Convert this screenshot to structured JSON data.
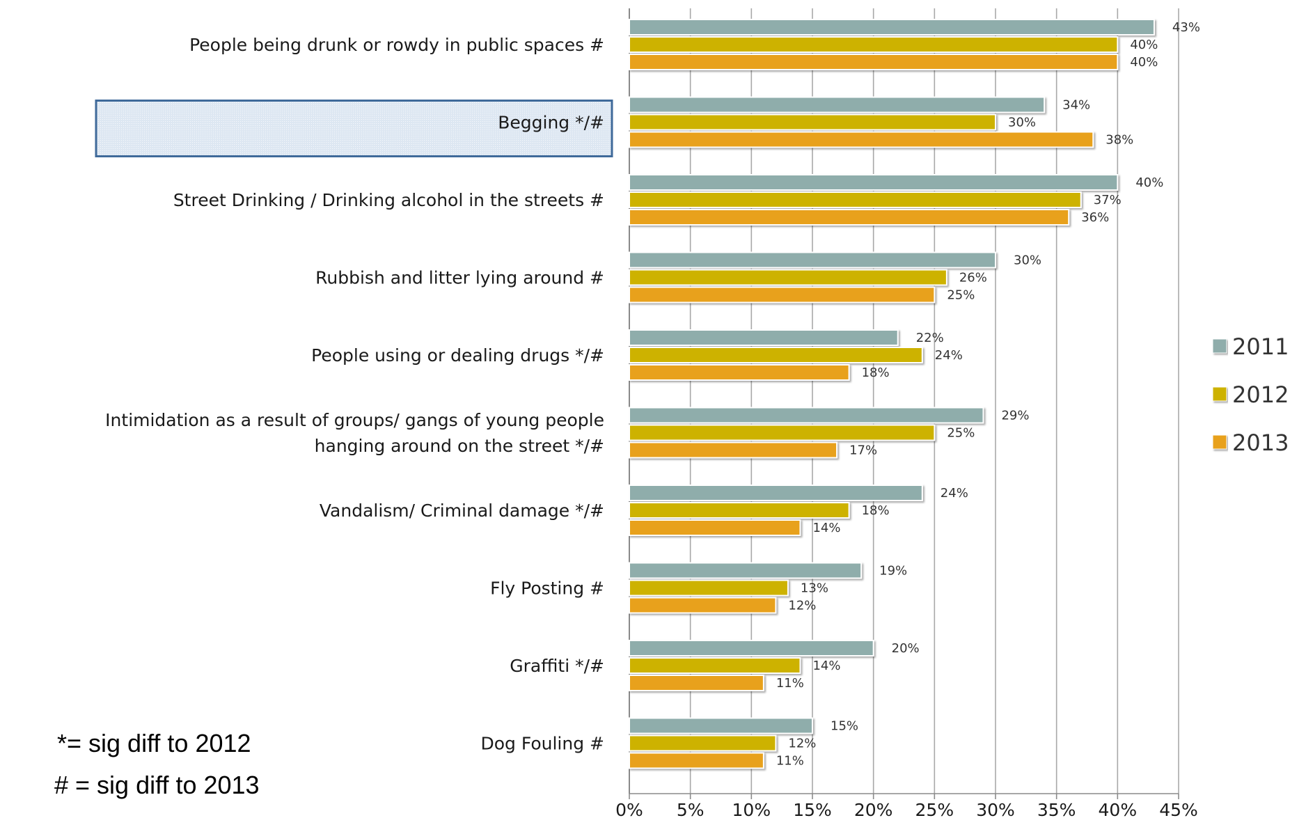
{
  "chart_data": {
    "type": "bar",
    "orientation": "horizontal",
    "categories": [
      [
        "People being drunk or rowdy in public spaces #"
      ],
      [
        "Begging */#"
      ],
      [
        "Street Drinking / Drinking alcohol in the streets #"
      ],
      [
        "Rubbish and litter lying around #"
      ],
      [
        "People using or dealing drugs */#"
      ],
      [
        "Intimidation as a result of groups/ gangs of young people",
        "hanging around on the street */#"
      ],
      [
        "Vandalism/ Criminal damage */#"
      ],
      [
        "Fly Posting #"
      ],
      [
        "Graffiti */#"
      ],
      [
        "Dog Fouling #"
      ]
    ],
    "highlighted_category_index": 1,
    "series": [
      {
        "name": "2011",
        "color": "#8fadab",
        "values": [
          43,
          34,
          40,
          30,
          22,
          29,
          24,
          19,
          20,
          15
        ]
      },
      {
        "name": "2012",
        "color": "#cdb200",
        "values": [
          40,
          30,
          37,
          26,
          24,
          25,
          18,
          13,
          14,
          12
        ]
      },
      {
        "name": "2013",
        "color": "#e8a11e",
        "values": [
          40,
          38,
          36,
          25,
          18,
          17,
          14,
          12,
          11,
          11
        ]
      }
    ],
    "xlim": [
      0,
      45
    ],
    "xticks": [
      0,
      5,
      10,
      15,
      20,
      25,
      30,
      35,
      40,
      45
    ],
    "tick_suffix": "%",
    "value_suffix": "%",
    "grid": true,
    "legend_position": "right"
  },
  "notes": [
    "*= sig diff to 2012",
    "# = sig diff to 2013"
  ]
}
